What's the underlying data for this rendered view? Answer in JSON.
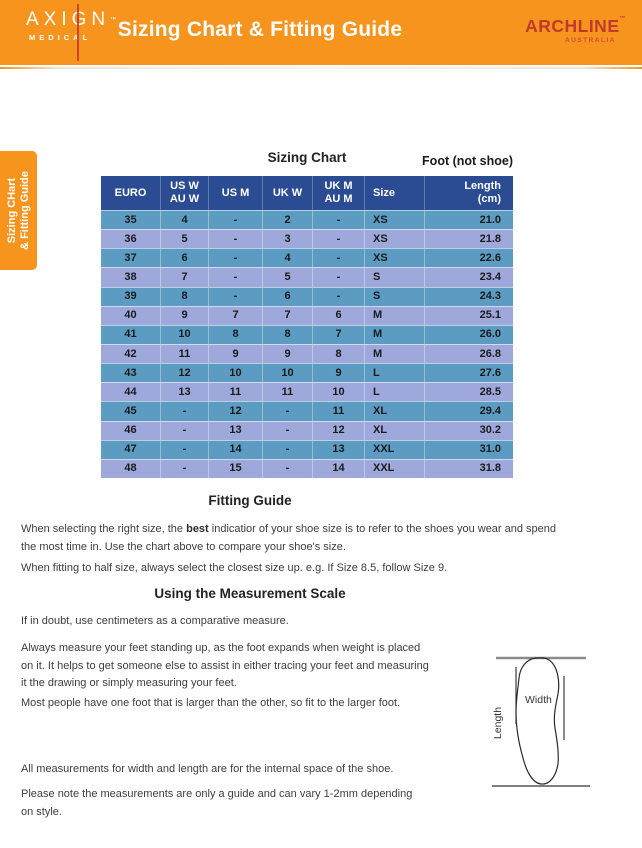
{
  "header": {
    "title": "Sizing Chart & Fitting Guide",
    "axign": {
      "name": "AXIGN",
      "tm": "™",
      "sub": "MEDICAL"
    },
    "archline": {
      "name": "ARCHLINE",
      "tm": "™",
      "sub": "AUSTRALIA"
    }
  },
  "side_tab": {
    "label": "Sizing CHart\n& Fitting Guide"
  },
  "sizing_chart": {
    "title": "Sizing Chart",
    "foot_note": "Foot (not shoe)",
    "columns": [
      "EURO",
      "US W\nAU W",
      "US M",
      "UK W",
      "UK M\nAU M",
      "Size",
      "Length\n(cm)"
    ],
    "rows": [
      [
        "35",
        "4",
        "-",
        "2",
        "-",
        "XS",
        "21.0"
      ],
      [
        "36",
        "5",
        "-",
        "3",
        "-",
        "XS",
        "21.8"
      ],
      [
        "37",
        "6",
        "-",
        "4",
        "-",
        "XS",
        "22.6"
      ],
      [
        "38",
        "7",
        "-",
        "5",
        "-",
        "S",
        "23.4"
      ],
      [
        "39",
        "8",
        "-",
        "6",
        "-",
        "S",
        "24.3"
      ],
      [
        "40",
        "9",
        "7",
        "7",
        "6",
        "M",
        "25.1"
      ],
      [
        "41",
        "10",
        "8",
        "8",
        "7",
        "M",
        "26.0"
      ],
      [
        "42",
        "11",
        "9",
        "9",
        "8",
        "M",
        "26.8"
      ],
      [
        "43",
        "12",
        "10",
        "10",
        "9",
        "L",
        "27.6"
      ],
      [
        "44",
        "13",
        "11",
        "11",
        "10",
        "L",
        "28.5"
      ],
      [
        "45",
        "-",
        "12",
        "-",
        "11",
        "XL",
        "29.4"
      ],
      [
        "46",
        "-",
        "13",
        "-",
        "12",
        "XL",
        "30.2"
      ],
      [
        "47",
        "-",
        "14",
        "-",
        "13",
        "XXL",
        "31.0"
      ],
      [
        "48",
        "-",
        "15",
        "-",
        "14",
        "XXL",
        "31.8"
      ]
    ]
  },
  "chart_data": {
    "type": "table",
    "title": "Sizing Chart",
    "columns": [
      "EURO",
      "US W / AU W",
      "US M",
      "UK W",
      "UK M / AU M",
      "Size",
      "Length (cm)"
    ],
    "rows": [
      [
        "35",
        "4",
        "-",
        "2",
        "-",
        "XS",
        "21.0"
      ],
      [
        "36",
        "5",
        "-",
        "3",
        "-",
        "XS",
        "21.8"
      ],
      [
        "37",
        "6",
        "-",
        "4",
        "-",
        "XS",
        "22.6"
      ],
      [
        "38",
        "7",
        "-",
        "5",
        "-",
        "S",
        "23.4"
      ],
      [
        "39",
        "8",
        "-",
        "6",
        "-",
        "S",
        "24.3"
      ],
      [
        "40",
        "9",
        "7",
        "7",
        "6",
        "M",
        "25.1"
      ],
      [
        "41",
        "10",
        "8",
        "8",
        "7",
        "M",
        "26.0"
      ],
      [
        "42",
        "11",
        "9",
        "9",
        "8",
        "M",
        "26.8"
      ],
      [
        "43",
        "12",
        "10",
        "10",
        "9",
        "L",
        "27.6"
      ],
      [
        "44",
        "13",
        "11",
        "11",
        "10",
        "L",
        "28.5"
      ],
      [
        "45",
        "-",
        "12",
        "-",
        "11",
        "XL",
        "29.4"
      ],
      [
        "46",
        "-",
        "13",
        "-",
        "12",
        "XL",
        "30.2"
      ],
      [
        "47",
        "-",
        "14",
        "-",
        "13",
        "XXL",
        "31.0"
      ],
      [
        "48",
        "-",
        "15",
        "-",
        "14",
        "XXL",
        "31.8"
      ]
    ]
  },
  "fitting_guide": {
    "heading": "Fitting Guide",
    "p1_before": "When selecting the right size, the ",
    "p1_bold": "best",
    "p1_after": " indicatior of your shoe size is to refer to the shoes you wear and spend\nthe most time in. Use the chart above to compare your shoe's size.",
    "p2": "When fitting to half size, always select the closest size up. e.g. If Size 8.5, follow Size 9."
  },
  "measurement": {
    "heading": "Using the Measurement Scale",
    "p1": "If in doubt, use centimeters as a comparative measure.",
    "p2": "Always measure your feet standing up, as the foot expands when weight is placed\non it. It helps to get someone else to assist in either tracing your feet and measuring\nit the drawing or simply measuring your feet.",
    "p3": "Most people have one foot that is larger than the other, so fit to the larger foot.",
    "p4": "All measurements for width and length are for the internal space of the shoe.",
    "p5": "Please note the measurements are only a guide and can vary 1-2mm depending\non style."
  },
  "diagram": {
    "width_label": "Width",
    "length_label": "Length"
  },
  "colors": {
    "orange": "#F6941D",
    "navy": "#2B4B93",
    "steel": "#5C9BC2",
    "periwinkle": "#9EA8DB",
    "red": "#C0392B"
  }
}
